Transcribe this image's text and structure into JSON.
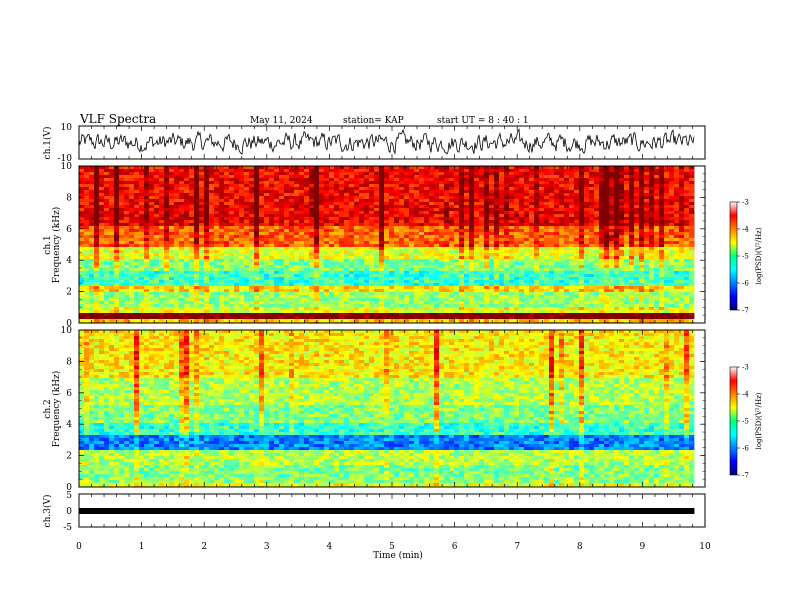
{
  "header": {
    "title": "VLF Spectra",
    "date": "May 11, 2024",
    "station": "station= KAP",
    "start": "start  UT  =   8  : 40 : 1"
  },
  "chart_data": [
    {
      "type": "line",
      "name": "ch1-waveform",
      "ylabel": "ch.1(V)",
      "ylim": [
        -10,
        10
      ],
      "yticks": [
        "10",
        "-10"
      ],
      "xlim": [
        0,
        10
      ],
      "x_end": 9.83,
      "color": "#000000"
    },
    {
      "type": "heatmap",
      "name": "ch1-spectrogram",
      "ylabel_line1": "ch.1",
      "ylabel_line2": "Frequency  (kHz)",
      "ylim": [
        0,
        10
      ],
      "yticks": [
        "0",
        "2",
        "4",
        "6",
        "8",
        "10"
      ],
      "xlim": [
        0,
        10
      ],
      "x_end": 9.83,
      "colorbar": {
        "label": "log(PSD)(V²/Hz)",
        "ticks": [
          "-3",
          "-4",
          "-5",
          "-6",
          "-7"
        ],
        "range": [
          -7,
          -3
        ]
      },
      "band_levels": [
        {
          "from": 0.0,
          "to": 0.3,
          "level": -4.3
        },
        {
          "from": 0.3,
          "to": 0.8,
          "level": -2.9
        },
        {
          "from": 0.8,
          "to": 1.2,
          "level": -4.6
        },
        {
          "from": 1.2,
          "to": 2.0,
          "level": -4.9
        },
        {
          "from": 2.0,
          "to": 2.5,
          "level": -4.4
        },
        {
          "from": 2.5,
          "to": 3.4,
          "level": -5.3
        },
        {
          "from": 3.4,
          "to": 4.2,
          "level": -5.0
        },
        {
          "from": 4.2,
          "to": 5.0,
          "level": -4.6
        },
        {
          "from": 5.0,
          "to": 6.2,
          "level": -3.9
        },
        {
          "from": 6.2,
          "to": 7.2,
          "level": -3.45
        },
        {
          "from": 7.2,
          "to": 10.0,
          "level": -3.5
        }
      ]
    },
    {
      "type": "heatmap",
      "name": "ch2-spectrogram",
      "ylabel_line1": "ch.2",
      "ylabel_line2": "Frequency  (kHz)",
      "ylim": [
        0,
        10
      ],
      "yticks": [
        "0",
        "2",
        "4",
        "6",
        "8",
        "10"
      ],
      "xlim": [
        0,
        10
      ],
      "x_end": 9.83,
      "colorbar": {
        "label": "log(PSD)(V²/Hz)",
        "ticks": [
          "-3",
          "-4",
          "-5",
          "-6",
          "-7"
        ],
        "range": [
          -7,
          -3
        ]
      },
      "band_levels": [
        {
          "from": 0.0,
          "to": 0.3,
          "level": -4.6
        },
        {
          "from": 0.3,
          "to": 0.8,
          "level": -4.9
        },
        {
          "from": 0.8,
          "to": 1.6,
          "level": -5.0
        },
        {
          "from": 1.6,
          "to": 2.4,
          "level": -4.8
        },
        {
          "from": 2.4,
          "to": 3.4,
          "level": -6.0
        },
        {
          "from": 3.4,
          "to": 4.2,
          "level": -5.3
        },
        {
          "from": 4.2,
          "to": 5.2,
          "level": -5.0
        },
        {
          "from": 5.2,
          "to": 7.0,
          "level": -4.8
        },
        {
          "from": 7.0,
          "to": 10.0,
          "level": -4.45
        }
      ]
    },
    {
      "type": "line",
      "name": "ch3-waveform",
      "ylabel": "ch.3(V)",
      "ylim": [
        -5,
        5
      ],
      "yticks": [
        "5",
        "0",
        "-5"
      ],
      "xlim": [
        0,
        10
      ],
      "x_end": 9.83,
      "xlabel": "Time  (min)",
      "xticks": [
        "0",
        "1",
        "2",
        "3",
        "4",
        "5",
        "6",
        "7",
        "8",
        "9",
        "10"
      ],
      "color": "#000000"
    }
  ]
}
